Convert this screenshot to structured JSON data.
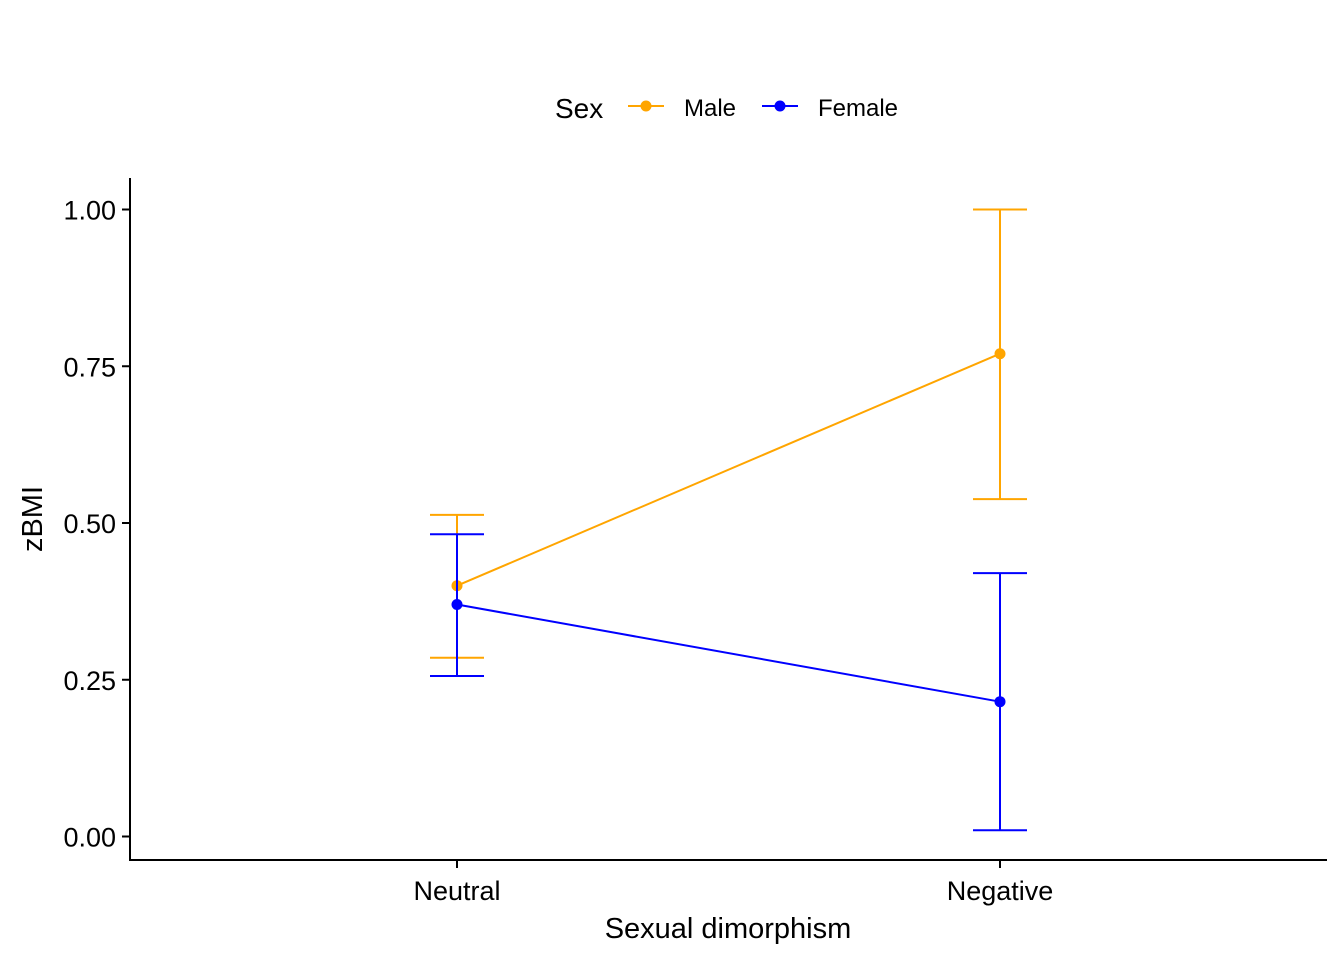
{
  "chart_data": {
    "type": "line",
    "title": "",
    "xlabel": "Sexual dimorphism",
    "ylabel": "zBMI",
    "categories": [
      "Neutral",
      "Negative"
    ],
    "ylim": [
      -0.04,
      1.05
    ],
    "yticks": [
      0.0,
      0.25,
      0.5,
      0.75,
      1.0
    ],
    "ytick_labels": [
      "0.00",
      "0.25",
      "0.50",
      "0.75",
      "1.00"
    ],
    "grid": false,
    "legend": {
      "title": "Sex",
      "position": "top"
    },
    "series": [
      {
        "name": "Male",
        "color": "#FFA500",
        "values": [
          0.4,
          0.77
        ],
        "lower": [
          0.285,
          0.538
        ],
        "upper": [
          0.513,
          1.0
        ]
      },
      {
        "name": "Female",
        "color": "#0000FF",
        "values": [
          0.37,
          0.215
        ],
        "lower": [
          0.256,
          0.01
        ],
        "upper": [
          0.482,
          0.42
        ]
      }
    ]
  }
}
